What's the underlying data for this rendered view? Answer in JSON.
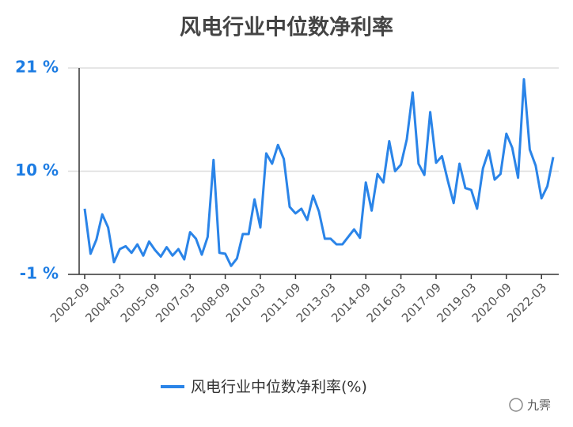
{
  "chart_data": {
    "type": "line",
    "title": "风电行业中位数净利率",
    "categories": [
      "2002-09",
      null,
      null,
      null,
      null,
      null,
      "2004-03",
      null,
      null,
      null,
      null,
      null,
      "2005-09",
      null,
      null,
      null,
      null,
      null,
      "2007-03",
      null,
      null,
      null,
      null,
      null,
      "2008-09",
      null,
      null,
      null,
      null,
      null,
      "2010-03",
      null,
      null,
      null,
      null,
      null,
      "2011-09",
      null,
      null,
      null,
      null,
      null,
      "2013-03",
      null,
      null,
      null,
      null,
      null,
      "2014-09",
      null,
      null,
      null,
      null,
      null,
      "2016-03",
      null,
      null,
      null,
      null,
      null,
      "2017-09",
      null,
      null,
      null,
      null,
      null,
      "2019-03",
      null,
      null,
      null,
      null,
      null,
      "2020-09",
      null,
      null,
      null,
      null,
      null,
      "2022-03",
      null,
      null
    ],
    "series": [
      {
        "name": "风电行业中位数净利率(%)",
        "color": "#2a84e8",
        "values": [
          6.0,
          1.2,
          2.7,
          5.4,
          4.0,
          0.3,
          1.7,
          2.0,
          1.3,
          2.2,
          1.0,
          2.5,
          1.6,
          0.9,
          1.9,
          1.0,
          1.7,
          0.6,
          3.5,
          2.8,
          1.1,
          3.0,
          11.2,
          1.3,
          1.2,
          -0.1,
          0.7,
          3.3,
          3.3,
          7.0,
          4.0,
          11.9,
          10.8,
          12.8,
          11.3,
          6.2,
          5.5,
          6.0,
          4.8,
          7.4,
          5.7,
          2.8,
          2.8,
          2.2,
          2.2,
          3.0,
          3.8,
          2.9,
          8.8,
          5.8,
          9.7,
          8.8,
          13.2,
          10.0,
          10.7,
          13.4,
          18.4,
          10.8,
          9.6,
          16.3,
          10.9,
          11.6,
          9.0,
          6.6,
          10.8,
          8.2,
          8.0,
          6.0,
          10.3,
          12.2,
          9.1,
          9.7,
          14.0,
          12.5,
          9.3,
          19.8,
          12.3,
          10.6,
          7.1,
          8.4,
          11.5
        ]
      }
    ],
    "ylim": [
      -1,
      21
    ],
    "yticks": [
      {
        "value": -1,
        "label": "-1 %"
      },
      {
        "value": 10,
        "label": "10 %"
      },
      {
        "value": 21,
        "label": "21 %"
      }
    ],
    "grid": true,
    "legend": "bottom",
    "tick_label_color": "#1e7de3"
  },
  "watermark": "九霁"
}
